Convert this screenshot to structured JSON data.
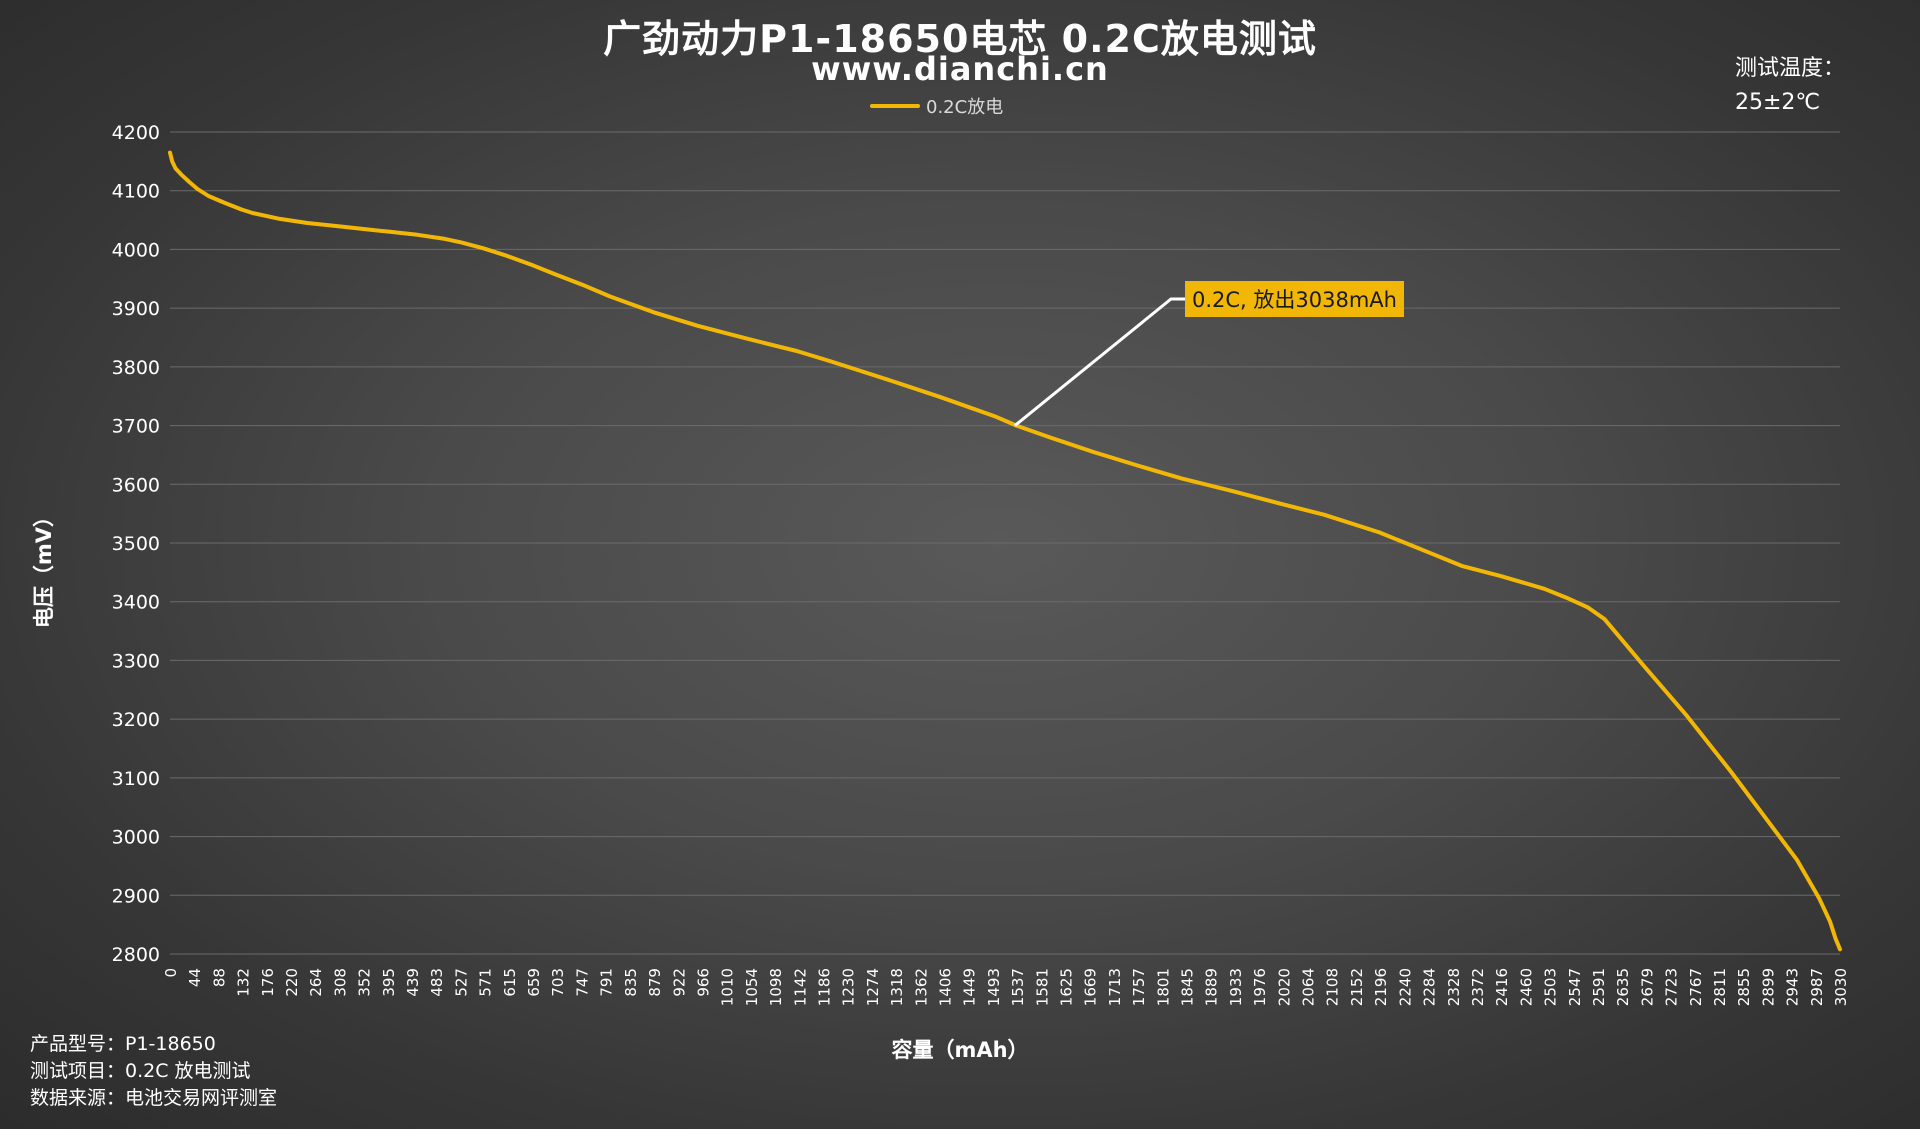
{
  "title": "广劲动力P1-18650电芯 0.2C放电测试",
  "subtitle": "www.dianchi.cn",
  "legend": {
    "label": "0.2C放电"
  },
  "temperature": {
    "label": "测试温度：",
    "value": "25±2℃"
  },
  "footer": {
    "model": "产品型号：P1-18650",
    "item": "测试项目：0.2C 放电测试",
    "source": "数据来源：电池交易网评测室"
  },
  "annotation": {
    "text": "0.2C, 放出3038mAh"
  },
  "colors": {
    "series": "#f2b705",
    "grid": "#6b6b6b",
    "text": "#ffffff",
    "callout_line": "#ffffff"
  },
  "chart_data": {
    "type": "line",
    "title": "广劲动力P1-18650电芯 0.2C放电测试",
    "xlabel": "容量（mAh）",
    "ylabel": "电压（mV）",
    "ylim": [
      2800,
      4200
    ],
    "yticks": [
      2800,
      2900,
      3000,
      3100,
      3200,
      3300,
      3400,
      3500,
      3600,
      3700,
      3800,
      3900,
      4000,
      4100,
      4200
    ],
    "xlim": [
      0,
      3038
    ],
    "xtick_labels": [
      "0",
      "44",
      "88",
      "132",
      "176",
      "220",
      "264",
      "308",
      "352",
      "395",
      "439",
      "483",
      "527",
      "571",
      "615",
      "659",
      "703",
      "747",
      "791",
      "835",
      "879",
      "922",
      "966",
      "1010",
      "1054",
      "1098",
      "1142",
      "1186",
      "1230",
      "1274",
      "1318",
      "1362",
      "1406",
      "1449",
      "1493",
      "1537",
      "1581",
      "1625",
      "1669",
      "1713",
      "1757",
      "1801",
      "1845",
      "1889",
      "1933",
      "1976",
      "2020",
      "2064",
      "2108",
      "2152",
      "2196",
      "2240",
      "2284",
      "2328",
      "2372",
      "2416",
      "2460",
      "2503",
      "2547",
      "2591",
      "2635",
      "2679",
      "2723",
      "2767",
      "2811",
      "2855",
      "2899",
      "2943",
      "2987",
      "3030"
    ],
    "grid": true,
    "legend_position": "top-center",
    "series": [
      {
        "name": "0.2C放电",
        "x": [
          0,
          4,
          10,
          20,
          35,
          50,
          70,
          100,
          130,
          150,
          200,
          250,
          300,
          350,
          400,
          450,
          500,
          530,
          570,
          610,
          660,
          700,
          750,
          800,
          880,
          960,
          1050,
          1140,
          1200,
          1300,
          1400,
          1500,
          1540,
          1600,
          1680,
          1760,
          1840,
          1930,
          2020,
          2100,
          2200,
          2300,
          2350,
          2420,
          2500,
          2540,
          2580,
          2610,
          2680,
          2760,
          2840,
          2920,
          2960,
          3000,
          3020,
          3030,
          3038
        ],
        "values": [
          4165,
          4150,
          4138,
          4128,
          4115,
          4103,
          4091,
          4079,
          4068,
          4062,
          4052,
          4045,
          4040,
          4035,
          4030,
          4025,
          4018,
          4012,
          4002,
          3990,
          3973,
          3958,
          3940,
          3920,
          3893,
          3870,
          3848,
          3827,
          3810,
          3780,
          3749,
          3716,
          3700,
          3680,
          3655,
          3632,
          3610,
          3589,
          3567,
          3548,
          3518,
          3480,
          3461,
          3444,
          3422,
          3407,
          3390,
          3370,
          3292,
          3205,
          3110,
          3010,
          2960,
          2895,
          2855,
          2826,
          2808
        ]
      }
    ],
    "annotations": [
      {
        "text": "0.2C, 放出3038mAh",
        "x": 1537,
        "y": 3700
      }
    ]
  }
}
